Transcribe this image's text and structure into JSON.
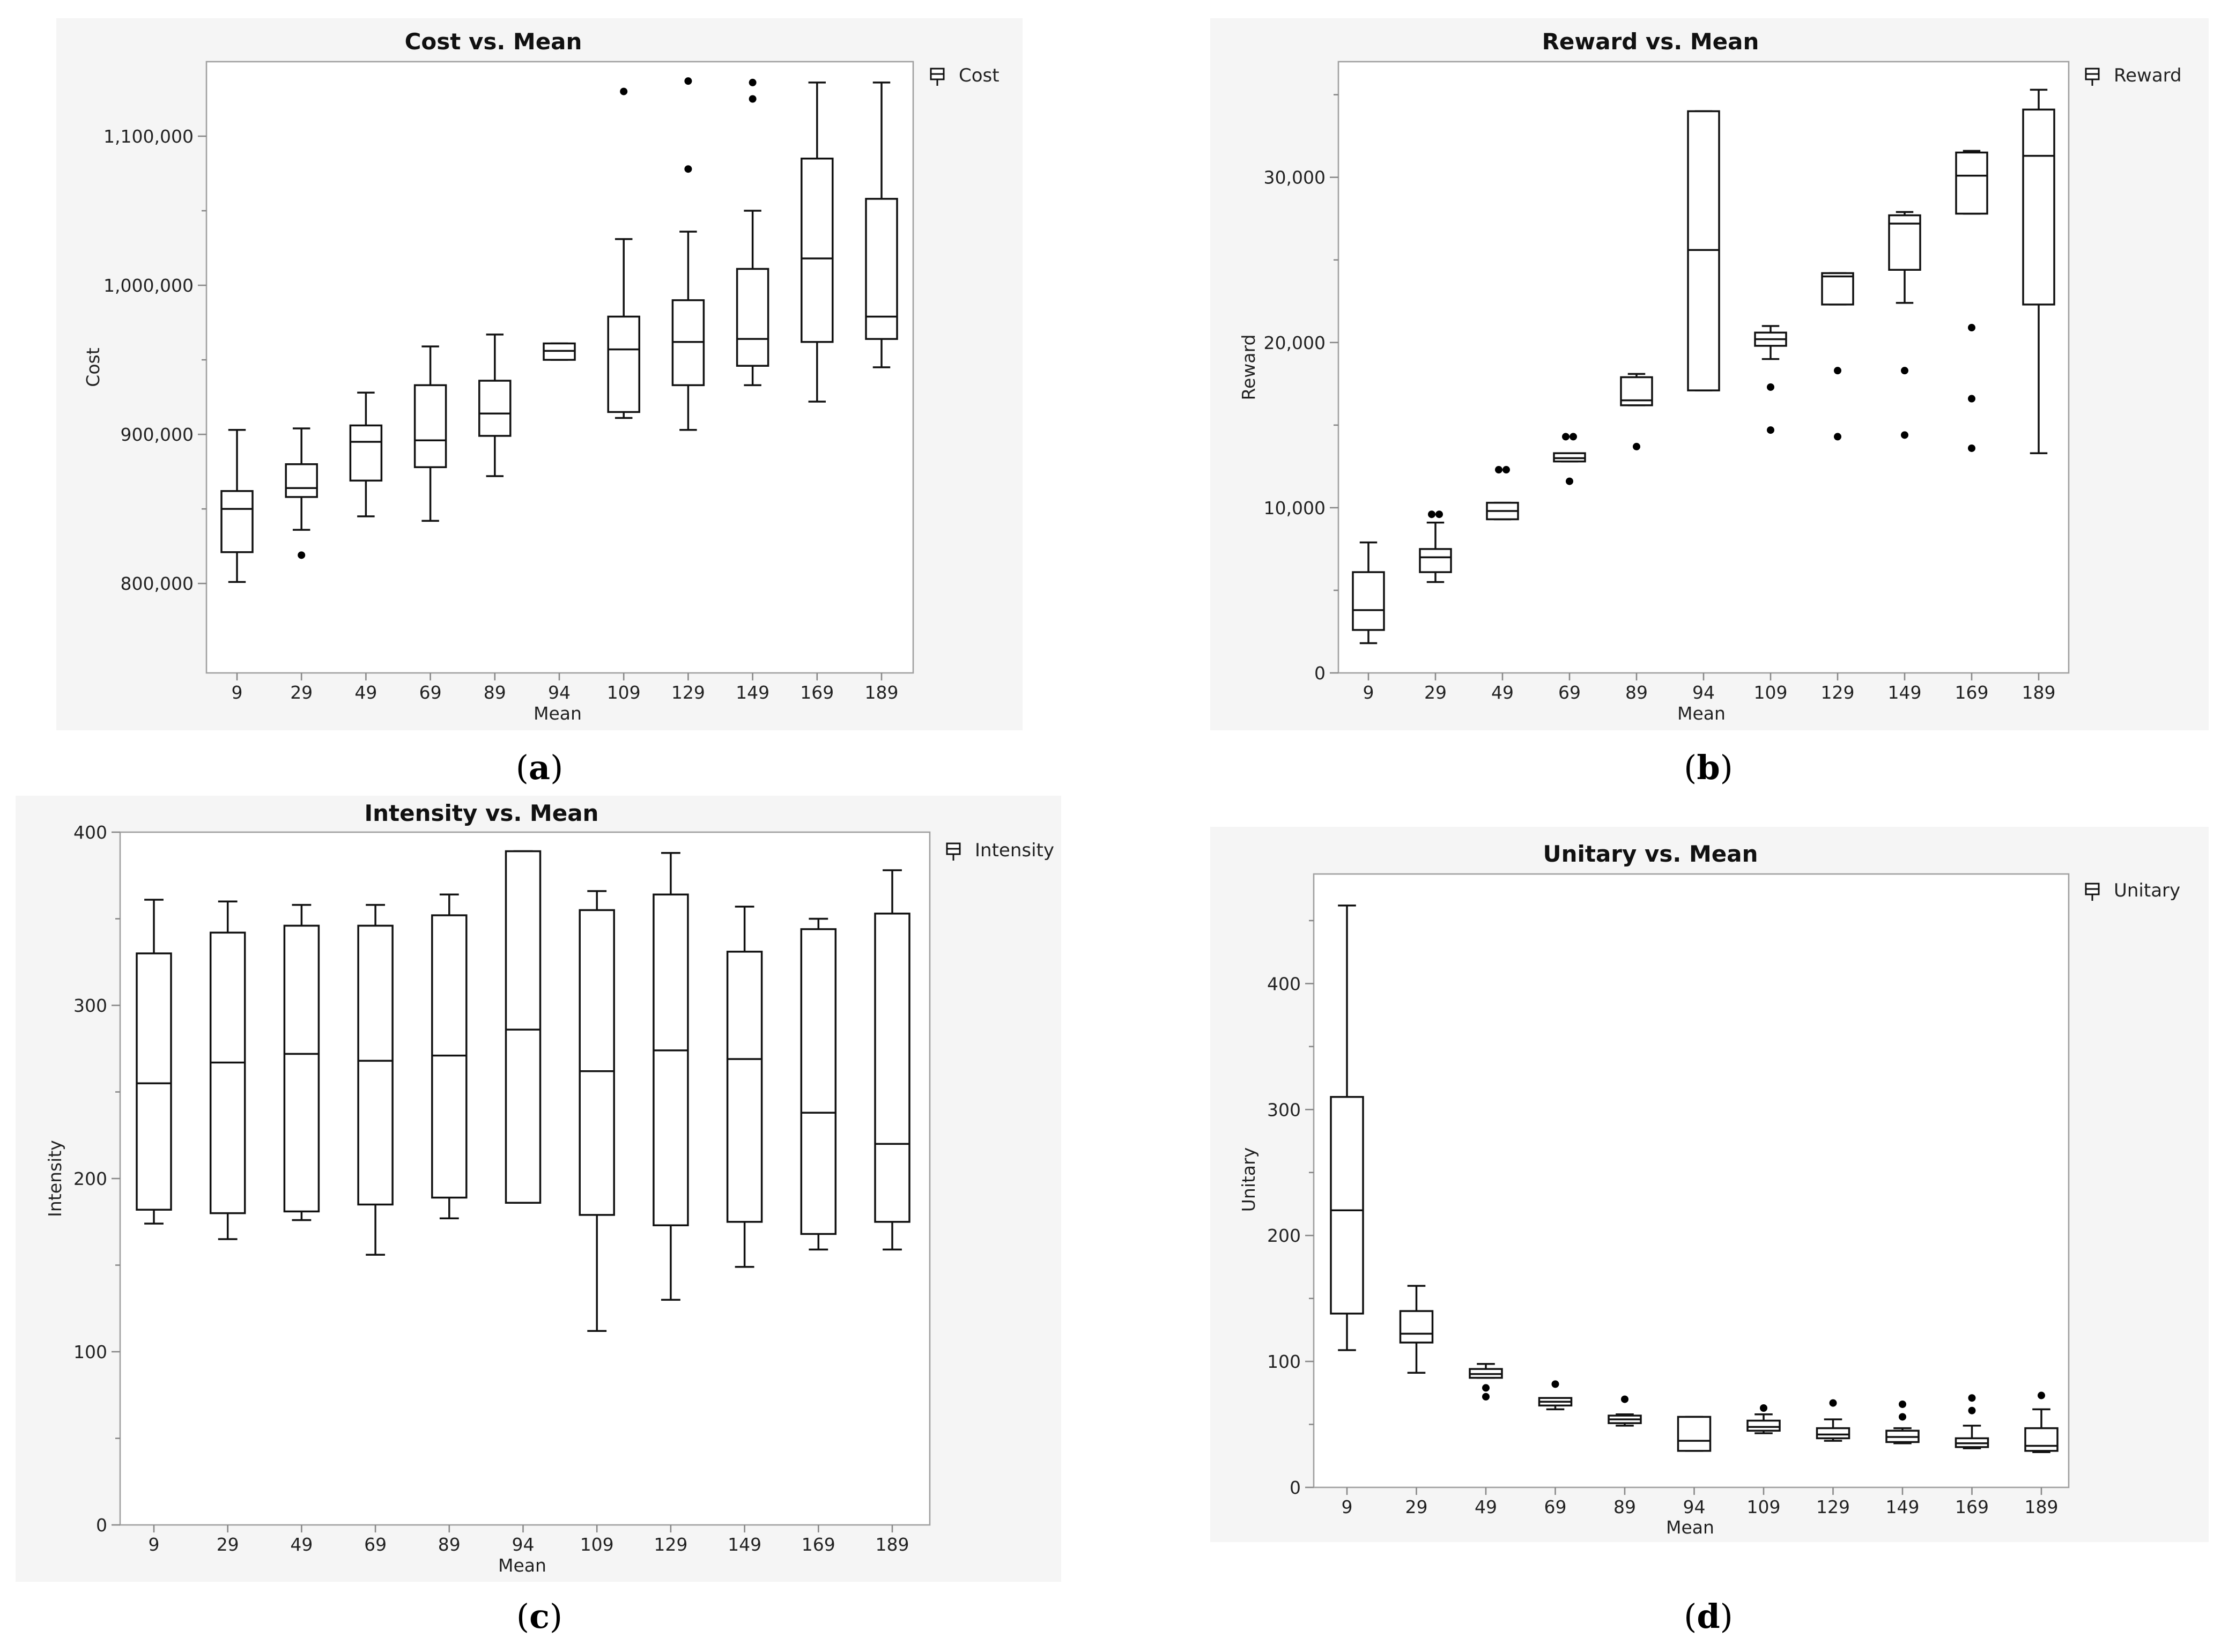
{
  "captions": [
    "a",
    "b",
    "c",
    "d"
  ],
  "chart_data": [
    {
      "type": "boxplot",
      "title": "Cost vs. Mean",
      "xlabel": "Mean",
      "ylabel": "Cost",
      "legend": "Cost",
      "ylim": [
        740000,
        1150000
      ],
      "yticks": [
        800000,
        900000,
        1000000,
        1100000
      ],
      "ytick_labels": [
        "800,000",
        "900,000",
        "1,000,000",
        "1,100,000"
      ],
      "minor_yticks": [
        850000,
        950000,
        1050000
      ],
      "categories": [
        "9",
        "29",
        "49",
        "69",
        "89",
        "94",
        "109",
        "129",
        "149",
        "169",
        "189"
      ],
      "boxes": [
        {
          "min": 801000,
          "q1": 821000,
          "median": 850000,
          "q3": 862000,
          "max": 903000,
          "outliers": []
        },
        {
          "min": 836000,
          "q1": 858000,
          "median": 864000,
          "q3": 880000,
          "max": 904000,
          "outliers": [
            819000
          ]
        },
        {
          "min": 845000,
          "q1": 869000,
          "median": 895000,
          "q3": 906000,
          "max": 928000,
          "outliers": []
        },
        {
          "min": 842000,
          "q1": 878000,
          "median": 896000,
          "q3": 933000,
          "max": 959000,
          "outliers": []
        },
        {
          "min": 872000,
          "q1": 899000,
          "median": 914000,
          "q3": 936000,
          "max": 967000,
          "outliers": []
        },
        {
          "min": 950000,
          "q1": 950000,
          "median": 956000,
          "q3": 961000,
          "max": 961000,
          "outliers": []
        },
        {
          "min": 911000,
          "q1": 915000,
          "median": 957000,
          "q3": 979000,
          "max": 1031000,
          "outliers": [
            1130000
          ]
        },
        {
          "min": 903000,
          "q1": 933000,
          "median": 962000,
          "q3": 990000,
          "max": 1036000,
          "outliers": [
            1078000,
            1137000
          ]
        },
        {
          "min": 933000,
          "q1": 946000,
          "median": 964000,
          "q3": 1011000,
          "max": 1050000,
          "outliers": [
            1125000,
            1136000
          ]
        },
        {
          "min": 922000,
          "q1": 962000,
          "median": 1018000,
          "q3": 1085000,
          "max": 1136000,
          "outliers": []
        },
        {
          "min": 945000,
          "q1": 964000,
          "median": 979000,
          "q3": 1058000,
          "max": 1136000,
          "outliers": []
        }
      ]
    },
    {
      "type": "boxplot",
      "title": "Reward vs. Mean",
      "xlabel": "Mean",
      "ylabel": "Reward",
      "legend": "Reward",
      "ylim": [
        0,
        37000
      ],
      "yticks": [
        0,
        10000,
        20000,
        30000
      ],
      "ytick_labels": [
        "0",
        "10,000",
        "20,000",
        "30,000"
      ],
      "minor_yticks": [
        5000,
        15000,
        25000,
        35000
      ],
      "categories": [
        "9",
        "29",
        "49",
        "69",
        "89",
        "94",
        "109",
        "129",
        "149",
        "169",
        "189"
      ],
      "boxes": [
        {
          "min": 1800,
          "q1": 2600,
          "median": 3800,
          "q3": 6100,
          "max": 7900,
          "outliers": []
        },
        {
          "min": 5500,
          "q1": 6100,
          "median": 7000,
          "q3": 7500,
          "max": 9100,
          "outliers": [
            9600,
            9600
          ]
        },
        {
          "min": 9300,
          "q1": 9300,
          "median": 9800,
          "q3": 10300,
          "max": 10300,
          "outliers": [
            12300,
            12300
          ]
        },
        {
          "min": 12800,
          "q1": 12800,
          "median": 13000,
          "q3": 13300,
          "max": 13300,
          "outliers": [
            11600,
            14300,
            14300
          ]
        },
        {
          "min": 16200,
          "q1": 16200,
          "median": 16500,
          "q3": 17900,
          "max": 18100,
          "outliers": [
            13700
          ]
        },
        {
          "min": 17100,
          "q1": 17100,
          "median": 25600,
          "q3": 34000,
          "max": 34000,
          "outliers": []
        },
        {
          "min": 19000,
          "q1": 19800,
          "median": 20200,
          "q3": 20600,
          "max": 21000,
          "outliers": [
            17300,
            14700
          ]
        },
        {
          "min": 22300,
          "q1": 22300,
          "median": 24000,
          "q3": 24200,
          "max": 24200,
          "outliers": [
            18300,
            14300
          ]
        },
        {
          "min": 22400,
          "q1": 24400,
          "median": 27200,
          "q3": 27700,
          "max": 27900,
          "outliers": [
            18300,
            14400
          ]
        },
        {
          "min": 27800,
          "q1": 27800,
          "median": 30100,
          "q3": 31500,
          "max": 31600,
          "outliers": [
            20900,
            16600,
            13600
          ]
        },
        {
          "min": 13300,
          "q1": 22300,
          "median": 31300,
          "q3": 34100,
          "max": 35300,
          "outliers": []
        }
      ]
    },
    {
      "type": "boxplot",
      "title": "Intensity vs. Mean",
      "xlabel": "Mean",
      "ylabel": "Intensity",
      "legend": "Intensity",
      "ylim": [
        0,
        400
      ],
      "yticks": [
        0,
        100,
        200,
        300,
        400
      ],
      "ytick_labels": [
        "0",
        "100",
        "200",
        "300",
        "400"
      ],
      "minor_yticks": [
        50,
        150,
        250,
        350
      ],
      "categories": [
        "9",
        "29",
        "49",
        "69",
        "89",
        "94",
        "109",
        "129",
        "149",
        "169",
        "189"
      ],
      "boxes": [
        {
          "min": 174,
          "q1": 182,
          "median": 255,
          "q3": 330,
          "max": 361,
          "outliers": []
        },
        {
          "min": 165,
          "q1": 180,
          "median": 267,
          "q3": 342,
          "max": 360,
          "outliers": []
        },
        {
          "min": 176,
          "q1": 181,
          "median": 272,
          "q3": 346,
          "max": 358,
          "outliers": []
        },
        {
          "min": 156,
          "q1": 185,
          "median": 268,
          "q3": 346,
          "max": 358,
          "outliers": []
        },
        {
          "min": 177,
          "q1": 189,
          "median": 271,
          "q3": 352,
          "max": 364,
          "outliers": []
        },
        {
          "min": 186,
          "q1": 186,
          "median": 286,
          "q3": 389,
          "max": 389,
          "outliers": []
        },
        {
          "min": 112,
          "q1": 179,
          "median": 262,
          "q3": 355,
          "max": 366,
          "outliers": []
        },
        {
          "min": 130,
          "q1": 173,
          "median": 274,
          "q3": 364,
          "max": 388,
          "outliers": []
        },
        {
          "min": 149,
          "q1": 175,
          "median": 269,
          "q3": 331,
          "max": 357,
          "outliers": []
        },
        {
          "min": 159,
          "q1": 168,
          "median": 238,
          "q3": 344,
          "max": 350,
          "outliers": []
        },
        {
          "min": 159,
          "q1": 175,
          "median": 220,
          "q3": 353,
          "max": 378,
          "outliers": []
        }
      ]
    },
    {
      "type": "boxplot",
      "title": "Unitary vs. Mean",
      "xlabel": "Mean",
      "ylabel": "Unitary",
      "legend": "Unitary",
      "ylim": [
        0,
        487
      ],
      "yticks": [
        0,
        100,
        200,
        300,
        400
      ],
      "ytick_labels": [
        "0",
        "100",
        "200",
        "300",
        "400"
      ],
      "minor_yticks": [
        50,
        150,
        250,
        350,
        450
      ],
      "categories": [
        "9",
        "29",
        "49",
        "69",
        "89",
        "94",
        "109",
        "129",
        "149",
        "169",
        "189"
      ],
      "boxes": [
        {
          "min": 109,
          "q1": 138,
          "median": 220,
          "q3": 310,
          "max": 462,
          "outliers": []
        },
        {
          "min": 91,
          "q1": 115,
          "median": 122,
          "q3": 140,
          "max": 160,
          "outliers": []
        },
        {
          "min": 87,
          "q1": 87,
          "median": 90,
          "q3": 94,
          "max": 98,
          "outliers": [
            79,
            72
          ]
        },
        {
          "min": 62,
          "q1": 65,
          "median": 68,
          "q3": 71,
          "max": 71,
          "outliers": [
            82
          ]
        },
        {
          "min": 49,
          "q1": 51,
          "median": 54,
          "q3": 57,
          "max": 58,
          "outliers": [
            70
          ]
        },
        {
          "min": 29,
          "q1": 29,
          "median": 37,
          "q3": 56,
          "max": 56,
          "outliers": []
        },
        {
          "min": 43,
          "q1": 45,
          "median": 48,
          "q3": 53,
          "max": 58,
          "outliers": [
            63
          ]
        },
        {
          "min": 37,
          "q1": 39,
          "median": 42,
          "q3": 47,
          "max": 54,
          "outliers": [
            67
          ]
        },
        {
          "min": 35,
          "q1": 36,
          "median": 40,
          "q3": 45,
          "max": 47,
          "outliers": [
            56,
            66
          ]
        },
        {
          "min": 31,
          "q1": 32,
          "median": 35,
          "q3": 39,
          "max": 49,
          "outliers": [
            61,
            71
          ]
        },
        {
          "min": 28,
          "q1": 29,
          "median": 33,
          "q3": 47,
          "max": 62,
          "outliers": [
            73
          ]
        }
      ]
    }
  ]
}
